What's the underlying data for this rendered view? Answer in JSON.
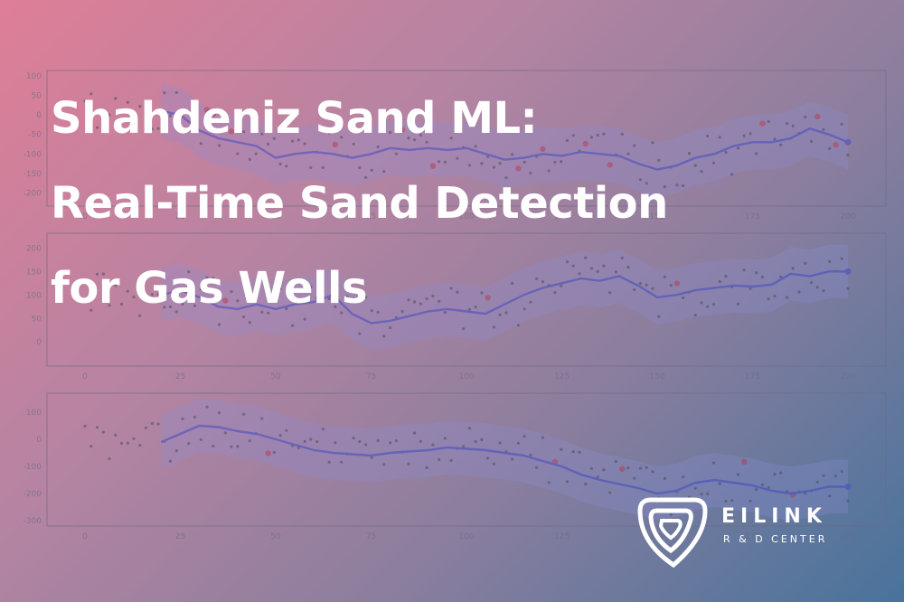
{
  "title": {
    "lines": [
      "Shahdeniz Sand ML:",
      "Real-Time Sand Detection",
      "for Gas Wells"
    ]
  },
  "logo": {
    "name": "EILINK",
    "subtitle": "R & D CENTER"
  },
  "colors": {
    "line": "#4a52c8",
    "band": "#8a8fd4",
    "point": "#55556a",
    "anomaly": "#b04a68",
    "axis": "#6a6a80"
  },
  "chart_data": [
    {
      "type": "line",
      "xlim": [
        0,
        200
      ],
      "ylim": [
        -220,
        100
      ],
      "xticks": [
        0,
        25,
        50,
        75,
        100,
        125,
        150,
        175,
        200
      ],
      "yticks": [
        100,
        50,
        0,
        -50,
        -100,
        -150,
        -200
      ],
      "series": [
        {
          "x": [
            20,
            25,
            30,
            35,
            40,
            45,
            50,
            55,
            60,
            65,
            70,
            75,
            80,
            85,
            90,
            95,
            100,
            105,
            110,
            115,
            120,
            125,
            130,
            135,
            140,
            145,
            150,
            155,
            160,
            165,
            170,
            175,
            180,
            185,
            190,
            195,
            200
          ],
          "y": [
            10,
            0,
            -40,
            -60,
            -70,
            -80,
            -110,
            -100,
            -95,
            -100,
            -110,
            -100,
            -85,
            -90,
            -85,
            -90,
            -85,
            -100,
            -115,
            -110,
            -100,
            -105,
            -95,
            -100,
            -105,
            -125,
            -140,
            -130,
            -110,
            -100,
            -80,
            -70,
            -70,
            -60,
            -35,
            -50,
            -70
          ]
        }
      ]
    },
    {
      "type": "line",
      "xlim": [
        0,
        200
      ],
      "ylim": [
        -40,
        220
      ],
      "xticks": [
        0,
        25,
        50,
        75,
        100,
        125,
        150,
        175,
        200
      ],
      "yticks": [
        200,
        150,
        100,
        50,
        0
      ],
      "series": [
        {
          "x": [
            20,
            25,
            30,
            35,
            40,
            45,
            50,
            55,
            60,
            65,
            70,
            75,
            80,
            85,
            90,
            95,
            100,
            105,
            110,
            115,
            120,
            125,
            130,
            135,
            140,
            145,
            150,
            155,
            160,
            165,
            170,
            175,
            180,
            185,
            190,
            195,
            200
          ],
          "y": [
            100,
            110,
            95,
            75,
            70,
            80,
            70,
            80,
            85,
            100,
            60,
            40,
            45,
            55,
            65,
            70,
            65,
            60,
            80,
            100,
            115,
            125,
            135,
            130,
            140,
            120,
            95,
            100,
            110,
            115,
            120,
            118,
            122,
            145,
            140,
            150,
            150
          ]
        }
      ]
    },
    {
      "type": "line",
      "xlim": [
        0,
        200
      ],
      "ylim": [
        -300,
        150
      ],
      "xticks": [
        0,
        25,
        50,
        75,
        100,
        125,
        150,
        175,
        200
      ],
      "yticks": [
        100,
        0,
        -100,
        -200,
        -300
      ],
      "series": [
        {
          "x": [
            20,
            25,
            30,
            35,
            40,
            45,
            50,
            55,
            60,
            65,
            70,
            75,
            80,
            85,
            90,
            95,
            100,
            105,
            110,
            115,
            120,
            125,
            130,
            135,
            140,
            145,
            150,
            155,
            160,
            165,
            170,
            175,
            180,
            185,
            190,
            195,
            200
          ],
          "y": [
            -10,
            20,
            50,
            45,
            30,
            20,
            0,
            -20,
            -40,
            -50,
            -55,
            -60,
            -50,
            -45,
            -40,
            -30,
            -35,
            -40,
            -50,
            -60,
            -80,
            -100,
            -130,
            -150,
            -165,
            -180,
            -200,
            -190,
            -160,
            -150,
            -160,
            -170,
            -190,
            -200,
            -190,
            -175,
            -175
          ]
        }
      ]
    }
  ]
}
